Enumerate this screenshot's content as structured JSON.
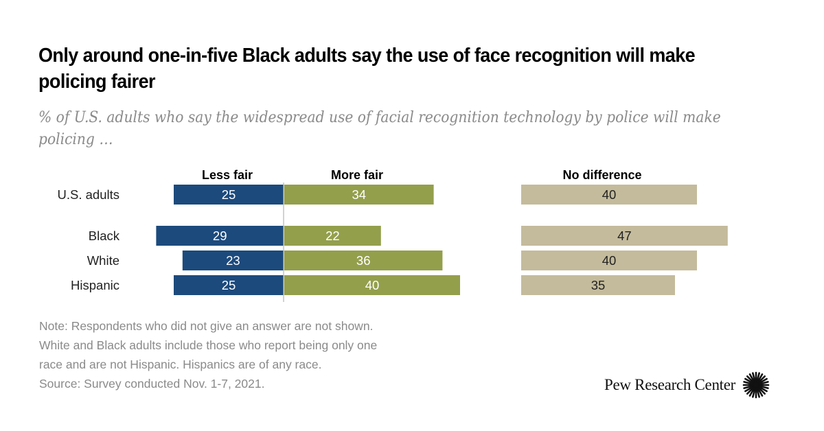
{
  "title": "Only around one-in-five Black adults say the use of face recognition will make policing fairer",
  "subtitle": "% of U.S. adults who say the widespread use of facial recognition technology by police will make policing …",
  "note_lines": [
    "Note: Respondents who did not give an answer are not shown.",
    "White and Black adults include those who report being only one",
    "race and are not Hispanic. Hispanics are of any race.",
    "Source: Survey conducted Nov. 1-7, 2021."
  ],
  "brand": {
    "name": "Pew Research Center",
    "logo_icon": "pew-starburst-icon"
  },
  "colors": {
    "less_fair": "#1c4a7d",
    "more_fair": "#949f4c",
    "no_difference": "#c4bb9c",
    "axis": "#b5b5b5"
  },
  "chart_data": {
    "type": "bar",
    "orientation": "horizontal-diverging",
    "title": "Only around one-in-five Black adults say the use of face recognition will make policing fairer",
    "subtitle": "% of U.S. adults who say the widespread use of facial recognition technology by police will make policing …",
    "categories": [
      "U.S. adults",
      "Black",
      "White",
      "Hispanic"
    ],
    "series": [
      {
        "name": "Less fair",
        "values": [
          25,
          29,
          23,
          25
        ],
        "color": "#1c4a7d",
        "label_color": "#ffffff"
      },
      {
        "name": "More fair",
        "values": [
          34,
          22,
          36,
          40
        ],
        "color": "#949f4c",
        "label_color": "#ffffff"
      },
      {
        "name": "No difference",
        "values": [
          40,
          47,
          40,
          35
        ],
        "color": "#c4bb9c",
        "label_color": "#222222"
      }
    ],
    "xlabel": "",
    "ylabel": "",
    "grid": false,
    "legend": "column headers above bars"
  }
}
